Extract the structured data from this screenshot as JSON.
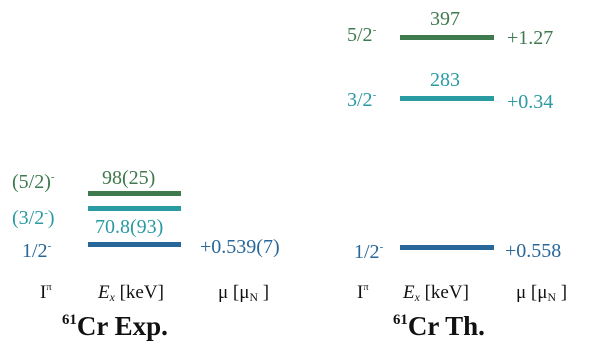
{
  "colors": {
    "state_5_2": "#3f7a4f",
    "state_3_2": "#2a9aa3",
    "state_1_2": "#28679a",
    "text": "#111111",
    "background": "#ffffff"
  },
  "experiment": {
    "title_mass": "61",
    "title_text": "Cr Exp.",
    "levels": [
      {
        "spin": "(5/2)",
        "parity": "-",
        "energy": "98(25)",
        "moment": "",
        "color_key": "state_5_2"
      },
      {
        "spin": "(3/2",
        "parity": "-",
        "spin_close": ")",
        "energy": "70.8(93)",
        "moment": "",
        "color_key": "state_3_2"
      },
      {
        "spin": "1/2",
        "parity": "-",
        "energy": "",
        "moment": "+0.539(7)",
        "color_key": "state_1_2"
      }
    ],
    "headers": {
      "spin_base": "I",
      "spin_sup": "π",
      "energy_sym": "E",
      "energy_sub": "x",
      "energy_unit": " [keV]",
      "moment_base": "μ [μ",
      "moment_sub": "N",
      "moment_close": " ]"
    }
  },
  "theory": {
    "title_mass": "61",
    "title_text": "Cr Th.",
    "levels": [
      {
        "spin": "5/2",
        "parity": "-",
        "energy": "397",
        "moment": "+1.27",
        "color_key": "state_5_2"
      },
      {
        "spin": "3/2",
        "parity": "-",
        "energy": "283",
        "moment": "+0.34",
        "color_key": "state_3_2"
      },
      {
        "spin": "1/2",
        "parity": "-",
        "energy": "",
        "moment": "+0.558",
        "color_key": "state_1_2"
      }
    ],
    "headers": {
      "spin_base": "I",
      "spin_sup": "π",
      "energy_sym": "E",
      "energy_sub": "x",
      "energy_unit": " [keV]",
      "moment_base": "μ [μ",
      "moment_sub": "N",
      "moment_close": " ]"
    }
  }
}
